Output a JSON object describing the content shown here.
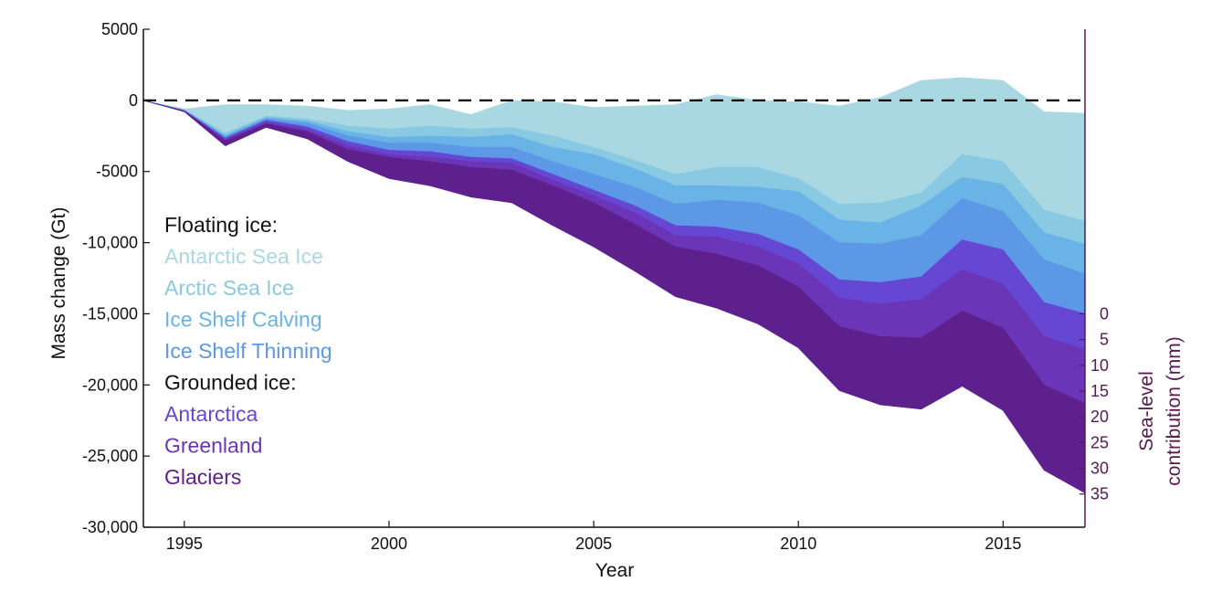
{
  "chart_data": {
    "type": "area",
    "stacked": true,
    "xlabel": "Year",
    "ylabel": "Mass change (Gt)",
    "xlim": [
      1994,
      2017
    ],
    "ylim": [
      -30000,
      5000
    ],
    "x_ticks": [
      1995,
      2000,
      2005,
      2010,
      2015
    ],
    "x_tick_labels": [
      "1995",
      "2000",
      "2005",
      "2010",
      "2015"
    ],
    "y_ticks": [
      5000,
      0,
      -5000,
      -10000,
      -15000,
      -20000,
      -25000,
      -30000
    ],
    "y_tick_labels": [
      "5000",
      "0",
      "-5000",
      "-10,000",
      "-15,000",
      "-20,000",
      "-25,000",
      "-30,000"
    ],
    "zero_line": "dashed",
    "x": [
      1994,
      1995,
      1996,
      1997,
      1998,
      1999,
      2000,
      2001,
      2002,
      2003,
      2004,
      2005,
      2006,
      2007,
      2008,
      2009,
      2010,
      2011,
      2012,
      2013,
      2014,
      2015,
      2016,
      2017
    ],
    "boundaries": [
      [
        0,
        -600,
        -300,
        -300,
        -400,
        -700,
        -600,
        -300,
        -1000,
        0,
        -100,
        -500,
        -400,
        -300,
        400,
        0,
        -100,
        -400,
        200,
        1400,
        1600,
        1400,
        -800,
        -900
      ],
      [
        0,
        -650,
        -2300,
        -1100,
        -1300,
        -1800,
        -2000,
        -1800,
        -2000,
        -1900,
        -2500,
        -3300,
        -4200,
        -5200,
        -4700,
        -4700,
        -5500,
        -7300,
        -7200,
        -6500,
        -3800,
        -4300,
        -7700,
        -8500
      ],
      [
        0,
        -680,
        -2450,
        -1200,
        -1450,
        -2200,
        -2600,
        -2500,
        -2600,
        -2400,
        -3300,
        -3800,
        -4800,
        -6000,
        -6000,
        -6100,
        -6400,
        -8400,
        -8600,
        -7400,
        -5400,
        -5900,
        -9300,
        -10100
      ],
      [
        0,
        -700,
        -2550,
        -1300,
        -1600,
        -2500,
        -3000,
        -3000,
        -3300,
        -3300,
        -4300,
        -5200,
        -6100,
        -7300,
        -7000,
        -7200,
        -8100,
        -10000,
        -10100,
        -9500,
        -6900,
        -7800,
        -11200,
        -12200
      ],
      [
        0,
        -720,
        -2650,
        -1400,
        -1850,
        -2900,
        -3500,
        -3600,
        -4000,
        -4100,
        -5200,
        -6300,
        -7400,
        -8800,
        -8900,
        -9400,
        -10500,
        -12600,
        -12800,
        -12400,
        -9800,
        -10500,
        -14200,
        -15000
      ],
      [
        0,
        -740,
        -2750,
        -1550,
        -2050,
        -3200,
        -3800,
        -4000,
        -4300,
        -4400,
        -5600,
        -6700,
        -7900,
        -9500,
        -9600,
        -10300,
        -11500,
        -13900,
        -14300,
        -14000,
        -11900,
        -12900,
        -16600,
        -17500
      ],
      [
        0,
        -760,
        -2850,
        -1650,
        -2200,
        -3450,
        -4000,
        -4300,
        -4700,
        -4900,
        -6000,
        -7200,
        -8700,
        -10300,
        -10800,
        -11600,
        -13100,
        -15900,
        -16600,
        -16700,
        -14800,
        -16000,
        -20000,
        -21300
      ],
      [
        0,
        -800,
        -3200,
        -1900,
        -2700,
        -4300,
        -5500,
        -6000,
        -6800,
        -7200,
        -8800,
        -10300,
        -12000,
        -13800,
        -14600,
        -15700,
        -17400,
        -20400,
        -21400,
        -21700,
        -20100,
        -21800,
        -26000,
        -27600
      ]
    ],
    "series": [
      {
        "name": "Antarctic Sea Ice",
        "color": "#a9d8e3",
        "lower": 0
      },
      {
        "name": "Arctic Sea Ice",
        "color": "#8ac9e2",
        "lower": 1
      },
      {
        "name": "Ice Shelf Calving",
        "color": "#6ab3e6",
        "lower": 2
      },
      {
        "name": "Ice Shelf Thinning",
        "color": "#5d98e6",
        "lower": 3
      },
      {
        "name": "Antarctica",
        "color": "#6547d4",
        "lower": 4
      },
      {
        "name": "Greenland",
        "color": "#6a36b7",
        "lower": 5
      },
      {
        "name": "Glaciers",
        "color": "#5e208d",
        "lower": 6
      }
    ],
    "secondary_axis": {
      "title_line1": "Sea-level",
      "title_line2": "contribution (mm)",
      "ticks": [
        0,
        5,
        10,
        15,
        20,
        25,
        30,
        35
      ],
      "tick_labels": [
        "0",
        "5",
        "10",
        "15",
        "20",
        "25",
        "30",
        "35"
      ],
      "gt_per_mm": 362,
      "zero_at_gt": -15000,
      "color": "#5a1850"
    },
    "legend": [
      {
        "text": "Floating ice:",
        "color": "#111111"
      },
      {
        "text": "Antarctic Sea Ice",
        "color": "#a9d8e3"
      },
      {
        "text": "Arctic Sea Ice",
        "color": "#8ac9e2"
      },
      {
        "text": "Ice Shelf Calving",
        "color": "#6ab3e6"
      },
      {
        "text": "Ice Shelf Thinning",
        "color": "#5d98e6"
      },
      {
        "text": "Grounded ice:",
        "color": "#111111"
      },
      {
        "text": "Antarctica",
        "color": "#6547d4"
      },
      {
        "text": "Greenland",
        "color": "#6a36b7"
      },
      {
        "text": "Glaciers",
        "color": "#5e208d"
      }
    ],
    "legend_placement": "left-middle"
  }
}
